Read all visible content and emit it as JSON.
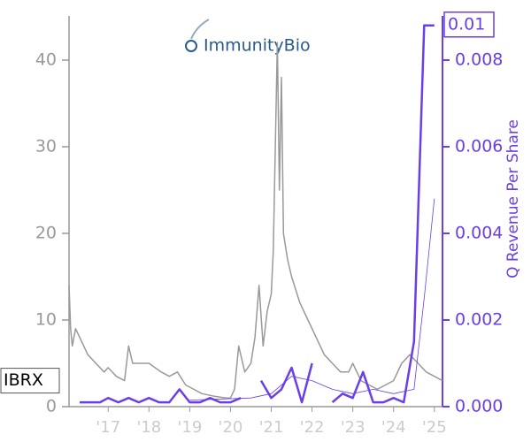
{
  "chart_data": {
    "type": "line",
    "logo": "ImmunityBio",
    "ticker": "IBRX",
    "y2_label": "Q Revenue Per Share",
    "xlim": [
      2016.04,
      2025.2
    ],
    "xticks": [
      {
        "value": 2017,
        "label": "'17"
      },
      {
        "value": 2018,
        "label": "'18"
      },
      {
        "value": 2019,
        "label": "'19"
      },
      {
        "value": 2020,
        "label": "'20"
      },
      {
        "value": 2021,
        "label": "'21"
      },
      {
        "value": 2022,
        "label": "'22"
      },
      {
        "value": 2023,
        "label": "'23"
      },
      {
        "value": 2024,
        "label": "'24"
      },
      {
        "value": 2025,
        "label": "'25"
      }
    ],
    "ylim": [
      0,
      45.1
    ],
    "yticks": [
      0,
      10,
      20,
      30,
      40
    ],
    "y2lim": [
      0,
      0.00902
    ],
    "y2ticks": [
      {
        "value": 0,
        "label": "0.000"
      },
      {
        "value": 0.002,
        "label": "0.002"
      },
      {
        "value": 0.004,
        "label": "0.004"
      },
      {
        "value": 0.006,
        "label": "0.006"
      },
      {
        "value": 0.008,
        "label": "0.008"
      }
    ],
    "series": [
      {
        "color": "#999999",
        "width": 1.5,
        "x": [
          2016.04,
          2016.08,
          2016.12,
          2016.2,
          2016.3,
          2016.5,
          2016.7,
          2016.9,
          2017.0,
          2017.2,
          2017.4,
          2017.5,
          2017.6,
          2017.8,
          2018.0,
          2018.3,
          2018.5,
          2018.7,
          2018.9,
          2019.1,
          2019.3,
          2019.6,
          2019.9,
          2020.0,
          2020.1,
          2020.2,
          2020.35,
          2020.5,
          2020.6,
          2020.7,
          2020.8,
          2020.9,
          2021.0,
          2021.05,
          2021.1,
          2021.15,
          2021.2,
          2021.25,
          2021.3,
          2021.4,
          2021.5,
          2021.7,
          2021.9,
          2022.1,
          2022.3,
          2022.5,
          2022.7,
          2022.9,
          2023.0,
          2023.2,
          2023.4,
          2023.6,
          2023.8,
          2024.0,
          2024.2,
          2024.4,
          2024.6,
          2024.8,
          2025.0,
          2025.2
        ],
        "values": [
          14,
          9,
          7,
          9,
          8,
          6,
          5,
          4,
          4.5,
          3.5,
          3,
          7,
          5,
          5,
          5,
          4,
          3.5,
          4,
          2.5,
          2,
          1.5,
          1.2,
          1,
          1,
          2,
          7,
          4,
          5,
          8,
          14,
          7,
          11,
          13,
          18,
          30,
          42,
          25,
          38,
          20,
          17,
          15,
          12,
          10,
          8,
          6,
          5,
          4,
          4,
          5,
          3,
          2.5,
          2,
          2.5,
          3,
          5,
          6,
          5,
          4,
          3.5,
          3
        ]
      },
      {
        "color": "#6a3ee8",
        "width": 2.5,
        "axis": "y2",
        "last_value_label": "0.01",
        "x": [
          2016.3,
          2016.55,
          2016.8,
          2017.0,
          2017.25,
          2017.5,
          2017.75,
          2018.0,
          2018.25,
          2018.5,
          2018.75,
          2019.0,
          2019.25,
          2019.5,
          2019.75,
          2020.0,
          2020.25,
          2020.5,
          2020.75,
          2021.0,
          2021.25,
          2021.5,
          2021.75,
          2022.0,
          2022.25,
          2022.5,
          2022.75,
          2023.0,
          2023.25,
          2023.5,
          2023.75,
          2024.0,
          2024.25,
          2024.5,
          2024.75,
          2025.0
        ],
        "values": [
          0.0001,
          0.0001,
          0.0001,
          0.0002,
          0.0001,
          0.0002,
          0.0001,
          0.0002,
          0.0001,
          0.0001,
          0.0004,
          0.0001,
          0.0001,
          0.0002,
          0.0001,
          0.0001,
          0.0002,
          null,
          0.0006,
          0.0002,
          0.0004,
          0.0009,
          0.0001,
          0.001,
          null,
          0.0001,
          0.0003,
          0.0002,
          0.0008,
          0.0001,
          0.0001,
          0.0002,
          0.0001,
          0.0015,
          0.0088,
          0.0088
        ]
      },
      {
        "color": "#6a3ee8",
        "width": 0.8,
        "axis": "y2",
        "x": [
          2019.0,
          2020.5,
          2021.0,
          2021.5,
          2022.0,
          2022.5,
          2023.0,
          2023.5,
          2024.0,
          2024.5,
          2024.75,
          2025.0
        ],
        "values": [
          0.00015,
          0.0002,
          0.0003,
          0.0007,
          0.0006,
          0.0004,
          0.0003,
          0.0004,
          0.0003,
          0.0004,
          0.0025,
          0.0048
        ]
      }
    ]
  }
}
